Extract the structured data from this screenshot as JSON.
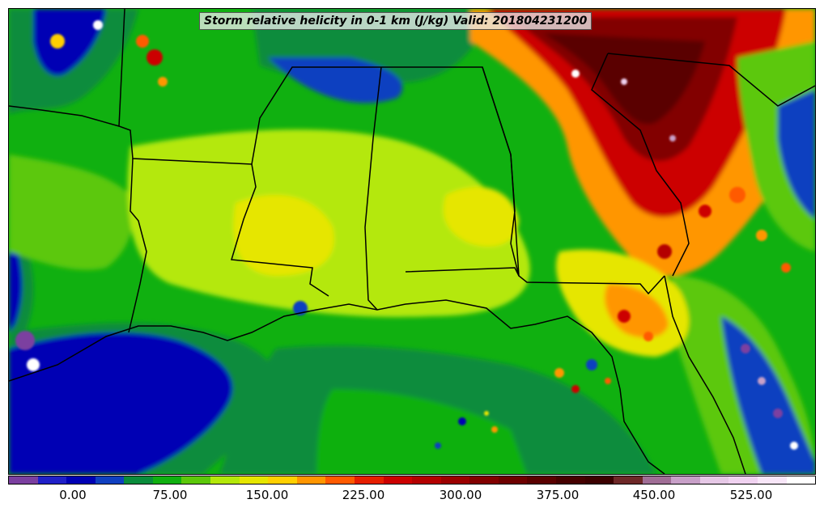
{
  "title": "Storm relative helicity in 0-1 km (J/kg) Valid: 201804231200",
  "colorbar": {
    "colors": [
      "#7b3fa0",
      "#2020c8",
      "#0000b4",
      "#1040c0",
      "#0a8c3c",
      "#10b010",
      "#5cc80a",
      "#b4e80a",
      "#e6e600",
      "#ffd000",
      "#ff9600",
      "#ff5a00",
      "#e61e00",
      "#cc0000",
      "#b40000",
      "#9c0000",
      "#820000",
      "#6e0000",
      "#5a0000",
      "#460000",
      "#3c0000",
      "#6e2828",
      "#a06e96",
      "#c8a0c8",
      "#e6c8e6",
      "#f0d2f0",
      "#f8e6f8",
      "#ffffff"
    ],
    "tick_labels": [
      "0.00",
      "75.00",
      "150.00",
      "225.00",
      "300.00",
      "375.00",
      "450.00",
      "525.00"
    ]
  }
}
